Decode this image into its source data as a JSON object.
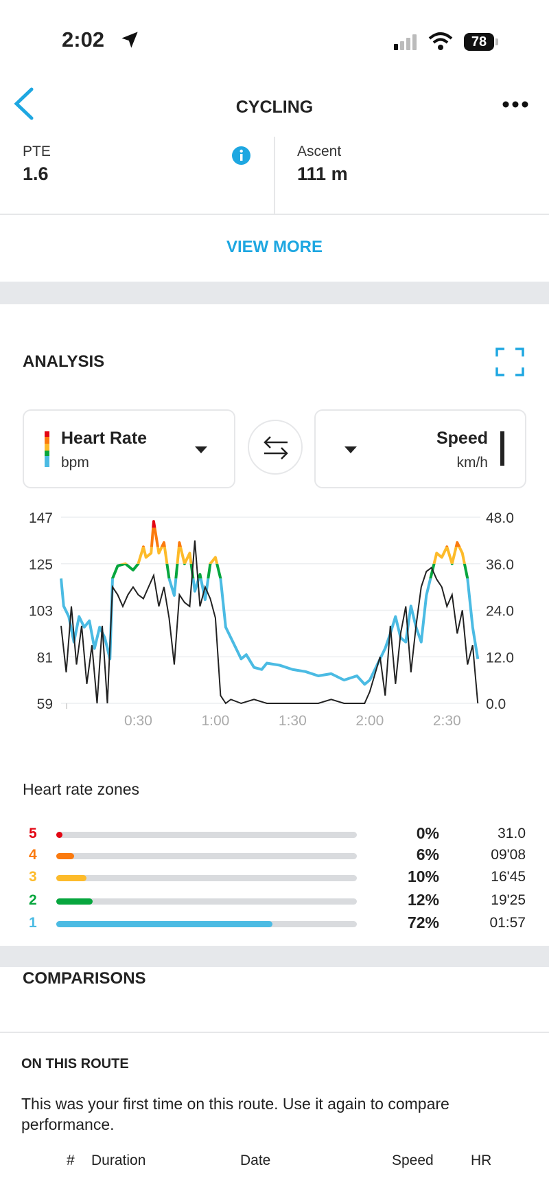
{
  "status_bar": {
    "time": "2:02",
    "battery": "78"
  },
  "header": {
    "title": "CYCLING"
  },
  "stats": [
    {
      "label": "PTE",
      "value": "1.6"
    },
    {
      "label": "Ascent",
      "value": "111 m"
    }
  ],
  "view_more": "VIEW MORE",
  "analysis": {
    "title": "ANALYSIS",
    "left_selector": {
      "title": "Heart Rate",
      "unit": "bpm"
    },
    "right_selector": {
      "title": "Speed",
      "unit": "km/h"
    }
  },
  "chart_data": {
    "type": "line",
    "x_ticks": [
      "0:30",
      "1:00",
      "1:30",
      "2:00",
      "2:30"
    ],
    "x_tick_minutes": [
      30,
      60,
      90,
      120,
      150
    ],
    "xlim_minutes": [
      0,
      163
    ],
    "y_left": {
      "ticks": [
        "147",
        "125",
        "103",
        "81",
        "59"
      ],
      "ylim": [
        59,
        147
      ]
    },
    "y_right": {
      "ticks": [
        "48.0",
        "36.0",
        "24.0",
        "12.0",
        "0.0"
      ],
      "ylim": [
        0,
        48
      ]
    },
    "grid": true,
    "zone_thresholds_bpm": [
      118,
      125,
      133,
      142
    ],
    "colors": {
      "zone1": "#4bbbe3",
      "zone2": "#07a63e",
      "zone3": "#fdbb2a",
      "zone4": "#fb7a0e",
      "zone5": "#e30613",
      "speed": "#222222"
    },
    "series": [
      {
        "name": "Heart Rate",
        "axis": "left",
        "x": [
          0,
          1,
          3,
          5,
          7,
          9,
          11,
          13,
          15,
          17,
          19,
          20,
          22,
          25,
          28,
          30,
          32,
          33,
          35,
          36,
          38,
          40,
          42,
          44,
          46,
          48,
          50,
          52,
          54,
          56,
          58,
          60,
          62,
          64,
          66,
          68,
          70,
          72,
          75,
          78,
          80,
          85,
          90,
          95,
          100,
          105,
          110,
          115,
          118,
          120,
          122,
          124,
          126,
          128,
          130,
          132,
          134,
          136,
          138,
          140,
          142,
          144,
          146,
          148,
          150,
          152,
          154,
          156,
          158,
          160,
          162
        ],
        "y": [
          118,
          105,
          100,
          88,
          100,
          95,
          98,
          85,
          95,
          90,
          80,
          118,
          124,
          125,
          122,
          125,
          133,
          128,
          130,
          145,
          130,
          135,
          118,
          110,
          135,
          125,
          130,
          112,
          120,
          108,
          125,
          128,
          118,
          95,
          90,
          85,
          80,
          82,
          76,
          75,
          78,
          77,
          75,
          74,
          72,
          73,
          70,
          72,
          68,
          70,
          75,
          80,
          85,
          92,
          100,
          90,
          88,
          105,
          95,
          88,
          110,
          120,
          130,
          128,
          133,
          125,
          135,
          130,
          118,
          95,
          80
        ]
      },
      {
        "name": "Speed",
        "axis": "right",
        "x": [
          0,
          2,
          4,
          6,
          8,
          10,
          12,
          14,
          16,
          18,
          20,
          22,
          24,
          26,
          28,
          30,
          32,
          34,
          36,
          38,
          40,
          42,
          44,
          46,
          48,
          50,
          52,
          54,
          56,
          58,
          60,
          62,
          64,
          66,
          70,
          75,
          80,
          90,
          100,
          105,
          110,
          118,
          120,
          124,
          126,
          128,
          130,
          132,
          134,
          136,
          138,
          140,
          142,
          144,
          146,
          148,
          150,
          152,
          154,
          156,
          158,
          160,
          162
        ],
        "y": [
          20,
          8,
          25,
          10,
          20,
          5,
          15,
          0,
          20,
          0,
          30,
          28,
          25,
          28,
          30,
          28,
          27,
          30,
          33,
          25,
          30,
          22,
          10,
          28,
          26,
          25,
          42,
          25,
          30,
          27,
          22,
          2,
          0,
          1,
          0,
          1,
          0,
          0,
          0,
          1,
          0,
          0,
          3,
          12,
          2,
          20,
          5,
          18,
          25,
          8,
          20,
          30,
          34,
          35,
          32,
          30,
          25,
          28,
          18,
          24,
          10,
          15,
          0
        ]
      }
    ]
  },
  "zones": {
    "title": "Heart rate zones",
    "items": [
      {
        "zone": "5",
        "percent": "0%",
        "fraction": 0,
        "time": "31.0",
        "color": "#e30613"
      },
      {
        "zone": "4",
        "percent": "6%",
        "fraction": 0.06,
        "time": "09'08",
        "color": "#fb7a0e"
      },
      {
        "zone": "3",
        "percent": "10%",
        "fraction": 0.1,
        "time": "16'45",
        "color": "#fdbb2a"
      },
      {
        "zone": "2",
        "percent": "12%",
        "fraction": 0.12,
        "time": "19'25",
        "color": "#07a63e"
      },
      {
        "zone": "1",
        "percent": "72%",
        "fraction": 0.72,
        "time": "01:57",
        "color": "#4bbbe3"
      }
    ]
  },
  "comparisons": {
    "title": "COMPARISONS",
    "subtitle": "ON THIS ROUTE",
    "message": "This was your first time on this route. Use it again to compare performance.",
    "columns": [
      "#",
      "Duration",
      "Date",
      "Speed",
      "HR"
    ]
  }
}
